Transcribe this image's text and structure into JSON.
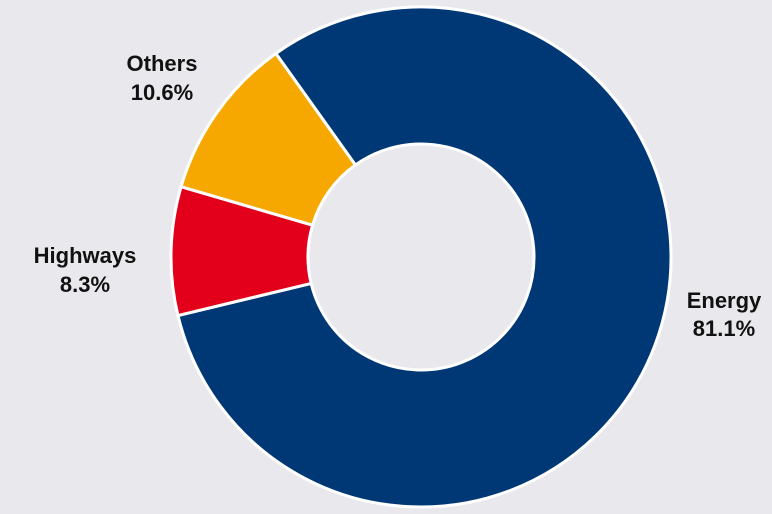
{
  "chart_data": {
    "type": "pie",
    "donut": true,
    "start_category": "Energy",
    "direction": "clockwise",
    "categories": [
      "Energy",
      "Highways",
      "Others"
    ],
    "values": [
      81.1,
      8.3,
      10.6
    ],
    "value_labels": [
      "81.1%",
      "8.3%",
      "10.6%"
    ],
    "colors": [
      "#003876",
      "#e2001a",
      "#f6a800"
    ],
    "background": "#e9e9ed",
    "legend": "none"
  }
}
